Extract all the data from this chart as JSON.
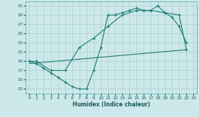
{
  "xlabel": "Humidex (Indice chaleur)",
  "bg_color": "#cce8ea",
  "line_color": "#1a7a6e",
  "grid_color": "#aacece",
  "xlim": [
    -0.5,
    23.5
  ],
  "ylim": [
    12,
    32
  ],
  "xticks": [
    0,
    1,
    2,
    3,
    4,
    5,
    6,
    7,
    8,
    9,
    10,
    11,
    12,
    13,
    14,
    15,
    16,
    17,
    18,
    19,
    20,
    21,
    22,
    23
  ],
  "yticks": [
    13,
    15,
    17,
    19,
    21,
    23,
    25,
    27,
    29,
    31
  ],
  "line1_x": [
    0,
    1,
    2,
    3,
    4,
    5,
    6,
    7,
    8,
    9,
    10,
    11,
    12,
    13,
    14,
    15,
    16,
    17,
    18,
    19,
    20,
    21,
    22
  ],
  "line1_y": [
    19,
    18.5,
    17.5,
    16.5,
    15.5,
    14.5,
    13.5,
    13,
    13,
    17,
    22,
    29,
    29,
    29.5,
    30,
    30.5,
    30,
    30,
    31,
    29.5,
    28.5,
    26.5,
    23
  ],
  "line2_x": [
    0,
    1,
    3,
    5,
    7,
    9,
    11,
    13,
    15,
    17,
    19,
    21,
    22
  ],
  "line2_y": [
    19,
    19,
    17,
    17,
    22,
    24,
    26.5,
    29,
    30,
    30,
    29.5,
    29,
    21.5
  ],
  "line3_x": [
    0,
    22
  ],
  "line3_y": [
    18.5,
    21.5
  ]
}
